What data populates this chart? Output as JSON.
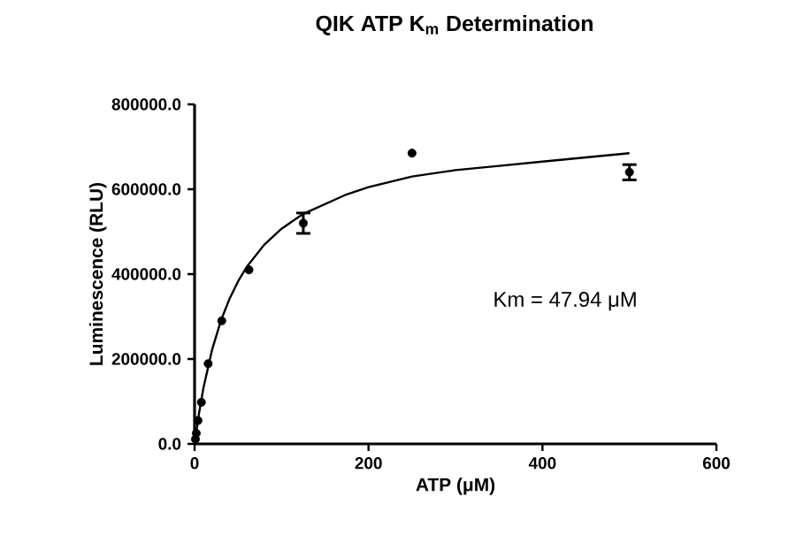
{
  "chart_data": {
    "type": "scatter",
    "title": "QIK ATP K$_{m}$ Determination",
    "xlabel": "ATP (μM)",
    "ylabel": "Luminescence (RLU)",
    "annotations": [
      "Km = 47.94 μM"
    ],
    "x": [
      0.98,
      1.95,
      3.9,
      7.8,
      15.6,
      31.25,
      62.5,
      125,
      250,
      500
    ],
    "series": [
      {
        "marker": "circle",
        "color": "#000000",
        "values": [
          11000,
          25000,
          55000,
          98000,
          189000,
          290000,
          410000,
          520000,
          685000,
          640000
        ],
        "errors": [
          null,
          null,
          null,
          null,
          null,
          null,
          null,
          24000,
          null,
          18000
        ]
      },
      {
        "type": "line",
        "marker": "none",
        "color": "#000000",
        "x": [
          0,
          5,
          10,
          20,
          30,
          40,
          50,
          60,
          80,
          100,
          125,
          150,
          175,
          200,
          250,
          300,
          350,
          400,
          450,
          500
        ],
        "values": [
          0,
          71000,
          130000,
          221000,
          289000,
          341000,
          383000,
          417000,
          469000,
          507000,
          542000,
          565000,
          588000,
          605000,
          630000,
          645000,
          655000,
          665000,
          675000,
          685000
        ]
      }
    ],
    "xlim": [
      0,
      600
    ],
    "ylim": [
      0,
      800000
    ],
    "xticks": [
      0,
      200,
      400,
      600
    ],
    "yticks": [
      {
        "value": 0,
        "label": "0.0"
      },
      {
        "value": 200000,
        "label": "200000.0"
      },
      {
        "value": 400000,
        "label": "400000.0"
      },
      {
        "value": 600000,
        "label": "600000.0"
      },
      {
        "value": 800000,
        "label": "800000.0"
      }
    ],
    "grid": false
  }
}
